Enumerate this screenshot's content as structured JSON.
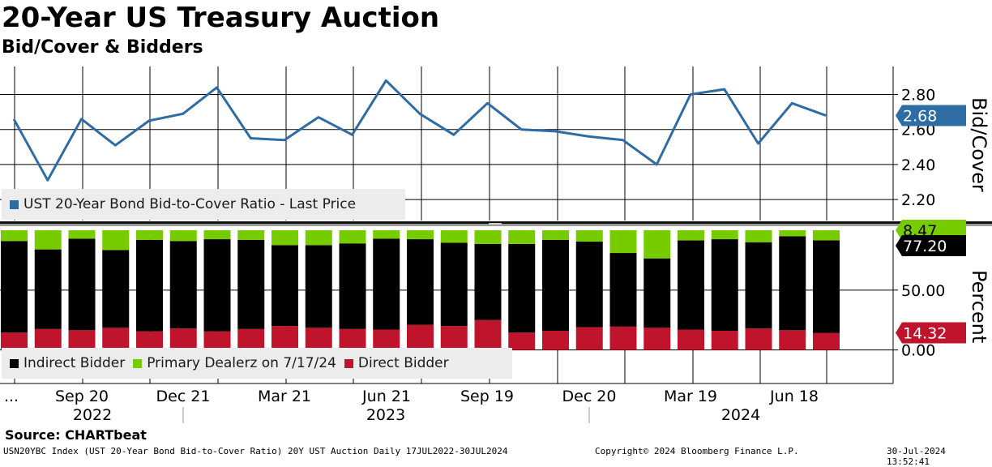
{
  "title": "20-Year US Treasury Auction",
  "subtitle": "Bid/Cover & Bidders",
  "source": "Source:  CHARTbeat",
  "footer": {
    "left": "USN20YBC Index (UST 20-Year Bond Bid-to-Cover Ratio) 20Y UST Auction  Daily 17JUL2022-30JUL2024",
    "center": "Copyright© 2024 Bloomberg Finance L.P.",
    "right": "30-Jul-2024 13:52:41"
  },
  "colors": {
    "line": "#2e6ca4",
    "indirect": "#000000",
    "primary": "#77cc00",
    "direct": "#c0142c",
    "grid": "#000000",
    "legend_bg": "#ececec"
  },
  "chart_data": [
    {
      "type": "line",
      "title": "Bid/Cover",
      "ylabel": "Bid/Cover",
      "ylim": [
        2.08,
        2.96
      ],
      "yticks": [
        "2.80",
        "2.60",
        "2.40",
        "2.20"
      ],
      "series": [
        {
          "name": "UST 20-Year Bond Bid-to-Cover Ratio - Last Price",
          "values": [
            2.66,
            2.31,
            2.66,
            2.51,
            2.65,
            2.69,
            2.84,
            2.55,
            2.54,
            2.67,
            2.57,
            2.88,
            2.69,
            2.57,
            2.75,
            2.6,
            2.59,
            2.56,
            2.54,
            2.4,
            2.8,
            2.83,
            2.52,
            2.75,
            2.68
          ]
        }
      ],
      "last_value_label": "2.68"
    },
    {
      "type": "bar",
      "stacked": true,
      "ylabel": "Percent",
      "ylim": [
        -28,
        100
      ],
      "yticks": [
        "50.00",
        "0.00"
      ],
      "series": [
        {
          "name": "Direct Bidder",
          "values": [
            14.5,
            17.5,
            16.5,
            18.5,
            15.5,
            18,
            15.5,
            17.5,
            20,
            18.5,
            17.5,
            17,
            21,
            20,
            25,
            14.5,
            16,
            19,
            19.5,
            18.5,
            17,
            16,
            18,
            16.5,
            14.32
          ]
        },
        {
          "name": "Indirect Bidder",
          "values": [
            76.5,
            66.5,
            76.5,
            65,
            76.5,
            73,
            77,
            74.5,
            67.5,
            69,
            71.5,
            76,
            71.5,
            69.5,
            63.5,
            74,
            76,
            71.5,
            61.5,
            58,
            74.5,
            76.5,
            72,
            78.5,
            77.2
          ]
        },
        {
          "name": "Primary Dealerz on 7/17/24",
          "values": [
            9,
            16,
            7,
            16.5,
            8,
            9,
            7.5,
            8,
            12.5,
            12.5,
            11,
            7,
            7.5,
            10.5,
            11.5,
            11.5,
            8,
            9.5,
            19,
            23.5,
            8.5,
            7.5,
            10,
            5,
            8.47
          ]
        }
      ],
      "last_value_labels": {
        "primary": "8.47",
        "indirect": "77.20",
        "direct": "14.32"
      }
    }
  ],
  "axis": {
    "x_month_labels": [
      "...",
      "Sep 20",
      "Dec 21",
      "Mar 21",
      "Jun 21",
      "Sep 19",
      "Dec 20",
      "Mar 19",
      "Jun 18"
    ],
    "x_year_labels": [
      "2022",
      "2023",
      "2024"
    ]
  },
  "legend_top": {
    "label": "UST 20-Year Bond Bid-to-Cover Ratio - Last Price"
  },
  "legend_bottom": {
    "items": [
      {
        "label": "Indirect Bidder"
      },
      {
        "label": "Primary Dealerz on 7/17/24"
      },
      {
        "label": "Direct Bidder"
      }
    ]
  }
}
